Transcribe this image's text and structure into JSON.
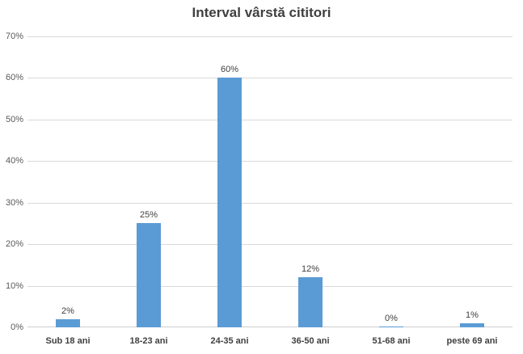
{
  "chart_data": {
    "type": "bar",
    "title": "Interval vârstă cititori",
    "categories": [
      "Sub 18 ani",
      "18-23 ani",
      "24-35 ani",
      "36-50 ani",
      "51-68 ani",
      "peste 69 ani"
    ],
    "values": [
      2,
      25,
      60,
      12,
      0,
      1
    ],
    "value_labels": [
      "2%",
      "25%",
      "60%",
      "12%",
      "0%",
      "1%"
    ],
    "y_ticks": [
      "0%",
      "10%",
      "20%",
      "30%",
      "40%",
      "50%",
      "60%",
      "70%"
    ],
    "ylim": [
      0,
      70
    ],
    "xlabel": "",
    "ylabel": "",
    "grid": true,
    "legend": false,
    "colors": {
      "bar": "#5b9bd5",
      "title_text": "#404040",
      "axis_text": "#595959",
      "category_text": "#404040",
      "value_label_text": "#404040",
      "gridline": "#d9d9d9",
      "baseline": "#cfcfcf",
      "background": "#ffffff"
    }
  }
}
